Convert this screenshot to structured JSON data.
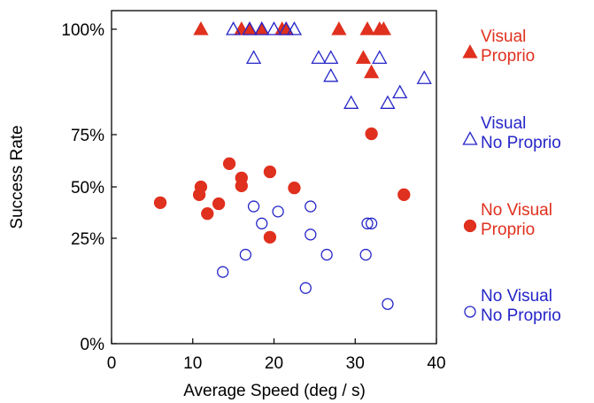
{
  "chart_data": {
    "type": "scatter",
    "xlabel": "Average Speed (deg / s)",
    "ylabel": "Success Rate",
    "xlim": [
      0,
      40
    ],
    "ylim": [
      0,
      100
    ],
    "x_ticks": [
      {
        "value": 0,
        "label": "0"
      },
      {
        "value": 10,
        "label": "10"
      },
      {
        "value": 20,
        "label": "20"
      },
      {
        "value": 30,
        "label": "30"
      },
      {
        "value": 40,
        "label": "40"
      }
    ],
    "y_ticks": [
      {
        "value": 0,
        "label": "0%"
      },
      {
        "value": 25,
        "label": "25%"
      },
      {
        "value": 50,
        "label": "50%"
      },
      {
        "value": 75,
        "label": "75%"
      },
      {
        "value": 100,
        "label": "100%"
      }
    ],
    "grid": false,
    "legend_position": "right",
    "colors": {
      "red": "#e0301e",
      "blue": "#2525c8"
    },
    "series": [
      {
        "name": "Visual Proprio",
        "legend_lines": [
          "Visual",
          "Proprio"
        ],
        "marker": "triangle-filled",
        "color": "#e0301e",
        "points": [
          {
            "x": 11.0,
            "y": 100
          },
          {
            "x": 16.0,
            "y": 100
          },
          {
            "x": 17.0,
            "y": 100
          },
          {
            "x": 18.5,
            "y": 100
          },
          {
            "x": 21.0,
            "y": 100
          },
          {
            "x": 21.5,
            "y": 100
          },
          {
            "x": 28.0,
            "y": 100
          },
          {
            "x": 31.5,
            "y": 100
          },
          {
            "x": 33.0,
            "y": 100
          },
          {
            "x": 33.5,
            "y": 100
          },
          {
            "x": 31.0,
            "y": 93.2
          },
          {
            "x": 32.0,
            "y": 89.8
          }
        ]
      },
      {
        "name": "Visual No Proprio",
        "legend_lines": [
          "Visual",
          "No Proprio"
        ],
        "marker": "triangle-open",
        "color": "#2525c8",
        "points": [
          {
            "x": 15.0,
            "y": 100
          },
          {
            "x": 17.0,
            "y": 100
          },
          {
            "x": 18.5,
            "y": 100
          },
          {
            "x": 20.0,
            "y": 100
          },
          {
            "x": 21.5,
            "y": 100
          },
          {
            "x": 22.5,
            "y": 100
          },
          {
            "x": 17.5,
            "y": 93.2
          },
          {
            "x": 25.5,
            "y": 93.2
          },
          {
            "x": 27.0,
            "y": 93.2
          },
          {
            "x": 33.0,
            "y": 93.2
          },
          {
            "x": 27.0,
            "y": 88.9
          },
          {
            "x": 38.5,
            "y": 88.4
          },
          {
            "x": 35.5,
            "y": 85.0
          },
          {
            "x": 29.5,
            "y": 82.5
          },
          {
            "x": 34.0,
            "y": 82.5
          }
        ]
      },
      {
        "name": "No Visual Proprio",
        "legend_lines": [
          "No Visual",
          "Proprio"
        ],
        "marker": "circle-filled",
        "color": "#e0301e",
        "points": [
          {
            "x": 32.0,
            "y": 75.2
          },
          {
            "x": 14.5,
            "y": 61.1
          },
          {
            "x": 19.5,
            "y": 57.2
          },
          {
            "x": 16.0,
            "y": 54.3
          },
          {
            "x": 11.0,
            "y": 50.0
          },
          {
            "x": 16.0,
            "y": 50.5
          },
          {
            "x": 22.5,
            "y": 49.5
          },
          {
            "x": 10.8,
            "y": 46.2
          },
          {
            "x": 36.0,
            "y": 46.2
          },
          {
            "x": 6.0,
            "y": 42.3
          },
          {
            "x": 13.2,
            "y": 41.8
          },
          {
            "x": 11.8,
            "y": 37.0
          },
          {
            "x": 19.5,
            "y": 25.5
          }
        ]
      },
      {
        "name": "No Visual No Proprio",
        "legend_lines": [
          "No Visual",
          "No Proprio"
        ],
        "marker": "circle-open",
        "color": "#2525c8",
        "points": [
          {
            "x": 17.5,
            "y": 40.5
          },
          {
            "x": 24.5,
            "y": 40.5
          },
          {
            "x": 20.5,
            "y": 38.0
          },
          {
            "x": 18.5,
            "y": 32.2
          },
          {
            "x": 31.5,
            "y": 32.2
          },
          {
            "x": 32.0,
            "y": 32.2
          },
          {
            "x": 24.5,
            "y": 26.8
          },
          {
            "x": 16.5,
            "y": 21.1
          },
          {
            "x": 26.5,
            "y": 21.1
          },
          {
            "x": 31.3,
            "y": 21.1
          },
          {
            "x": 13.7,
            "y": 17.0
          },
          {
            "x": 23.9,
            "y": 13.2
          },
          {
            "x": 34.0,
            "y": 9.4
          }
        ]
      }
    ]
  }
}
